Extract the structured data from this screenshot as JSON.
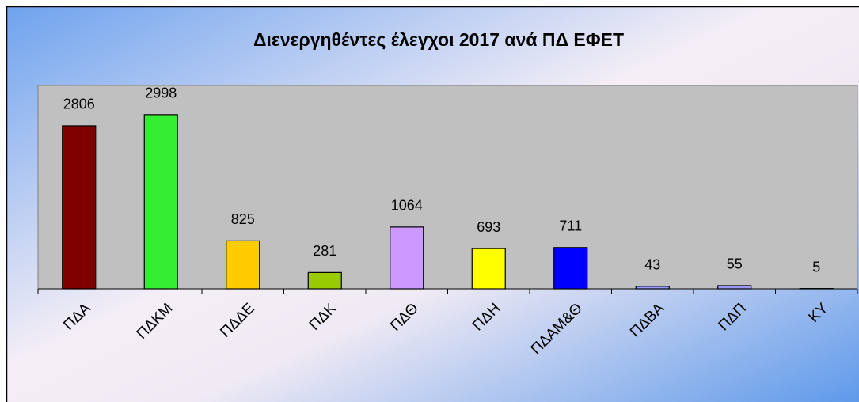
{
  "chart_data": {
    "type": "bar",
    "title": "Διενεργηθέντες έλεγχοι 2017 ανά ΠΔ ΕΦΕΤ",
    "categories": [
      "ΠΔΑ",
      "ΠΔΚΜ",
      "ΠΔΔΕ",
      "ΠΔΚ",
      "ΠΔΘ",
      "ΠΔΗ",
      "ΠΔΑΜ&Θ",
      "ΠΔΒΑ",
      "ΠΔΠ",
      "ΚΥ"
    ],
    "values": [
      2806,
      2998,
      825,
      281,
      1064,
      693,
      711,
      43,
      55,
      5
    ],
    "colors": [
      "#800000",
      "#33ee33",
      "#ffcc00",
      "#99cc00",
      "#cc99ff",
      "#ffff00",
      "#0000ff",
      "#9999ff",
      "#9999ff",
      "#9999ff"
    ],
    "ylim": [
      0,
      3500
    ]
  }
}
